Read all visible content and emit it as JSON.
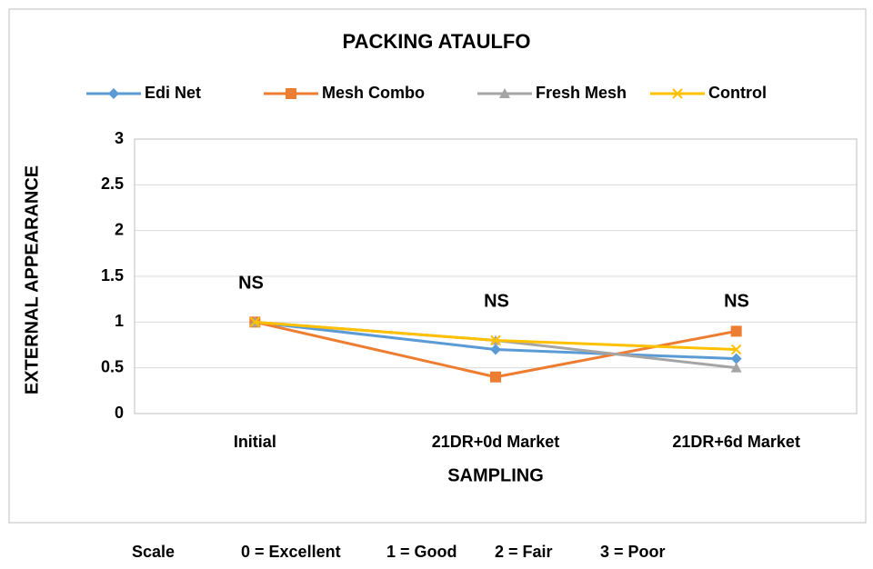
{
  "chart_data": {
    "type": "line",
    "title": "PACKING ATAULFO",
    "categories": [
      "Initial",
      "21DR+0d Market",
      "21DR+6d Market"
    ],
    "series": [
      {
        "name": "Edi Net",
        "color": "#5b9bd5",
        "marker": "diamond",
        "values": [
          1,
          0.7,
          0.6
        ]
      },
      {
        "name": "Mesh Combo",
        "color": "#ed7d31",
        "marker": "square",
        "values": [
          1,
          0.4,
          0.9
        ]
      },
      {
        "name": "Fresh Mesh",
        "color": "#a5a5a5",
        "marker": "triangle",
        "values": [
          1,
          0.8,
          0.5
        ]
      },
      {
        "name": "Control",
        "color": "#ffc000",
        "marker": "x",
        "values": [
          1,
          0.8,
          0.7
        ]
      }
    ],
    "ylim": [
      0,
      3
    ],
    "yticks": [
      0,
      0.5,
      1,
      1.5,
      2,
      2.5,
      3
    ],
    "grid": true,
    "legend": "top",
    "xlabel": "SAMPLING",
    "ylabel": "EXTERNAL  APPEARANCE",
    "annotations": [
      "NS",
      "NS",
      "NS"
    ],
    "footnote": [
      "Scale",
      "0 = Excellent",
      "1 = Good",
      "2 = Fair",
      "3 = Poor"
    ]
  }
}
